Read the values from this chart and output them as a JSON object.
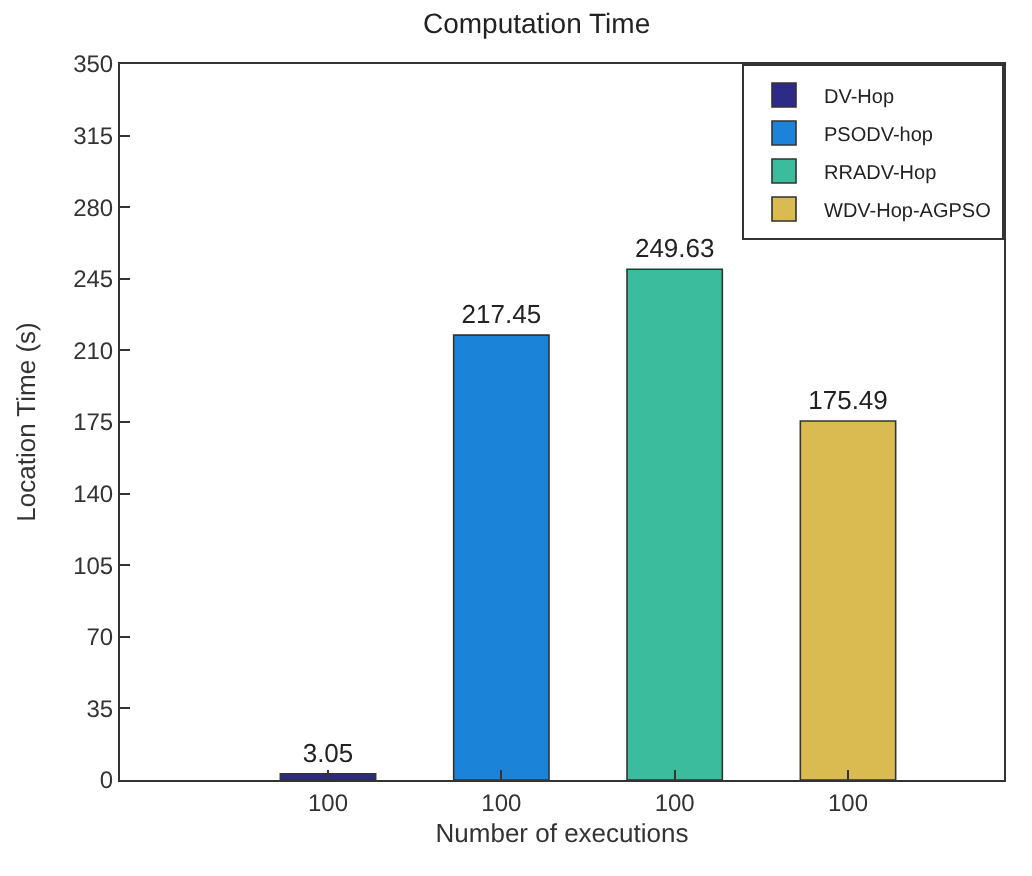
{
  "chart_data": {
    "type": "bar",
    "title": "Computation Time",
    "xlabel": "Number of executions",
    "ylabel": "Location Time (s)",
    "categories": [
      "100",
      "100",
      "100",
      "100"
    ],
    "series": [
      {
        "name": "DV-Hop",
        "color": "#2e2a86",
        "values": [
          3.05,
          null,
          null,
          null
        ]
      },
      {
        "name": "PSODV-hop",
        "color": "#1c84d8",
        "values": [
          null,
          217.45,
          null,
          null
        ]
      },
      {
        "name": "RRADV-Hop",
        "color": "#3bbc9d",
        "values": [
          null,
          null,
          249.63,
          null
        ]
      },
      {
        "name": "WDV-Hop-AGPSO",
        "color": "#d9bb52",
        "values": [
          null,
          null,
          null,
          175.49
        ]
      }
    ],
    "ylim": [
      0,
      350
    ],
    "yticks": [
      0,
      35,
      70,
      105,
      140,
      175,
      210,
      245,
      280,
      315,
      350
    ],
    "data_labels": true,
    "legend": "top right"
  }
}
